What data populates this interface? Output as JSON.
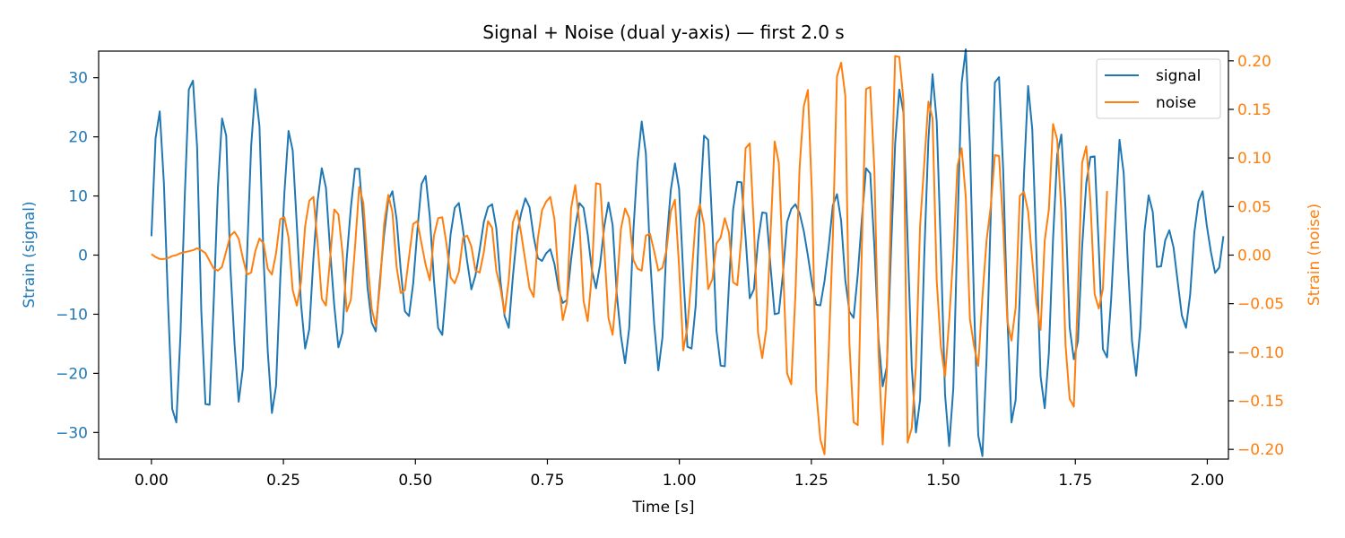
{
  "chart_data": {
    "type": "line",
    "title": "Signal + Noise (dual y-axis) — first 2.0 s",
    "xlabel": "Time [s]",
    "ylabel_left": "Strain (signal)",
    "ylabel_right": "Strain (noise)",
    "xlim": [
      -0.1,
      2.04
    ],
    "ylim_left": [
      -34.5,
      34.5
    ],
    "ylim_right": [
      -0.21,
      0.21
    ],
    "x_ticks": [
      0.0,
      0.25,
      0.5,
      0.75,
      1.0,
      1.25,
      1.5,
      1.75,
      2.0
    ],
    "x_tick_labels": [
      "0.00",
      "0.25",
      "0.50",
      "0.75",
      "1.00",
      "1.25",
      "1.50",
      "1.75",
      "2.00"
    ],
    "y_left_ticks": [
      30,
      20,
      10,
      0,
      -10,
      -20,
      -30
    ],
    "y_left_tick_labels": [
      "30",
      "20",
      "10",
      "0",
      "−10",
      "−20",
      "−30"
    ],
    "y_right_ticks": [
      0.2,
      0.15,
      0.1,
      0.05,
      0.0,
      -0.05,
      -0.1,
      -0.15,
      -0.2
    ],
    "y_right_tick_labels": [
      "0.20",
      "0.15",
      "0.10",
      "0.05",
      "0.00",
      "−0.05",
      "−0.10",
      "−0.15",
      "−0.20"
    ],
    "legend": {
      "placement": "top-right",
      "entries": [
        "signal",
        "noise"
      ]
    },
    "colors": {
      "signal": "#1f77b4",
      "noise": "#ff7f0e",
      "axis": "#000000"
    },
    "x_step": 0.00787,
    "series": [
      {
        "name": "signal",
        "axis": "left",
        "values": [
          3.2,
          19.8,
          24.3,
          12.2,
          -8,
          -26,
          -28.3,
          -13.3,
          9.5,
          28,
          29.5,
          18.2,
          -9.4,
          -25.2,
          -25.3,
          -7.7,
          11.3,
          23.1,
          20.2,
          -2,
          -15,
          -24.8,
          -19.2,
          -0.3,
          18.4,
          28.1,
          21.8,
          -0.7,
          -16.3,
          -26.7,
          -22.1,
          -4.2,
          10.5,
          21,
          17.7,
          5,
          -8.2,
          -15.8,
          -12.5,
          -0.5,
          9.2,
          14.7,
          11.4,
          0.9,
          -8.5,
          -15.6,
          -13.1,
          -0.6,
          8,
          14.6,
          14.6,
          5.6,
          -5.4,
          -11.4,
          -12.9,
          -4.1,
          3.5,
          9.3,
          10.8,
          6.1,
          -2.5,
          -9.5,
          -10.3,
          -4.8,
          4.1,
          12,
          13.4,
          6.5,
          -4.3,
          -12.3,
          -13.5,
          -5.1,
          3.5,
          8,
          8.8,
          4.2,
          -1.1,
          -5.8,
          -3.4,
          0.9,
          5.6,
          8.1,
          8.6,
          4.6,
          -4.4,
          -10.3,
          -12.3,
          -3.6,
          3.6,
          7.1,
          9.6,
          8.1,
          3.1,
          -0.5,
          -1,
          0.3,
          1,
          -1.5,
          -5.8,
          -8.1,
          -7.6,
          -0.8,
          4.7,
          8.8,
          8,
          3.5,
          -2.5,
          -5.6,
          -1.5,
          4.9,
          8.9,
          5.1,
          -6.6,
          -13.7,
          -18.3,
          -12.3,
          4.1,
          15.7,
          22.6,
          17.2,
          -0.2,
          -11.6,
          -19.5,
          -13.9,
          2.3,
          11,
          15.5,
          11.2,
          -3.2,
          -15.5,
          -15.8,
          -8.5,
          8,
          20.2,
          19.5,
          4.7,
          -12.8,
          -18.7,
          -18.8,
          -5,
          7.7,
          12.4,
          12.3,
          3,
          -7.3,
          -5.8,
          2.4,
          7.2,
          7.1,
          -1.9,
          -10,
          -9.8,
          -3.1,
          5.6,
          7.8,
          8.6,
          7.1,
          4.1,
          -0.1,
          -4.8,
          -8.4,
          -8.5,
          -4.4,
          1.4,
          8.4,
          10.3,
          5.8,
          -4.2,
          -9.6,
          -10.6,
          -3.3,
          6.2,
          14.7,
          13.8,
          1.4,
          -14.2,
          -22.2,
          -18.9,
          0.6,
          18.9,
          28,
          24.1,
          2.4,
          -18.9,
          -30,
          -24.5,
          -0.1,
          19.5,
          30.6,
          22.6,
          1.1,
          -23.5,
          -32.3,
          -22.5,
          4.6,
          29.1,
          34.8,
          18.7,
          -8.6,
          -30.5,
          -34,
          -17.5,
          6.5,
          29.2,
          30.1,
          14.4,
          -10.2,
          -28.3,
          -24.5,
          -6.8,
          13.5,
          28.6,
          21.3,
          0.4,
          -20.5,
          -25.9,
          -16.5,
          2.7,
          17,
          20.4,
          7.9,
          -12.2,
          -17.6,
          -14.5,
          1.4,
          12.2,
          16.6,
          16.7,
          1.4,
          -15.9,
          -17.3,
          -7.3,
          6.4,
          19.5,
          13.9,
          -1.3,
          -14.5,
          -20.4,
          -12.3,
          3.9,
          10.1,
          7.3,
          -2,
          -1.9,
          2.5,
          4.2,
          1.3,
          -4.5,
          -10.2,
          -12.3,
          -6.7,
          3.8,
          9.1,
          10.8,
          5,
          0.5,
          -3,
          -2.1,
          3.2
        ]
      },
      {
        "name": "noise",
        "axis": "right",
        "values": [
          0.001,
          -0.002,
          -0.004,
          -0.004,
          -0.003,
          -0.001,
          0,
          0.002,
          0.003,
          0.004,
          0.005,
          0.007,
          0.005,
          0.002,
          -0.006,
          -0.014,
          -0.016,
          -0.012,
          0.004,
          0.02,
          0.024,
          0.017,
          -0.003,
          -0.02,
          -0.018,
          0.004,
          0.017,
          0.012,
          -0.014,
          -0.02,
          0.002,
          0.037,
          0.039,
          0.018,
          -0.036,
          -0.052,
          -0.028,
          0.03,
          0.056,
          0.06,
          0.012,
          -0.045,
          -0.052,
          -0.004,
          0.047,
          0.042,
          0.002,
          -0.058,
          -0.046,
          0.008,
          0.07,
          0.054,
          -0.006,
          -0.055,
          -0.073,
          -0.032,
          0.032,
          0.062,
          0.044,
          -0.012,
          -0.039,
          -0.036,
          -0.002,
          0.032,
          0.035,
          0.012,
          -0.01,
          -0.026,
          0.02,
          0.038,
          0.039,
          0.012,
          -0.023,
          -0.029,
          -0.017,
          0.018,
          0.02,
          0.009,
          -0.016,
          -0.018,
          0.003,
          0.035,
          0.028,
          -0.016,
          -0.034,
          -0.06,
          -0.026,
          0.034,
          0.046,
          0.022,
          -0.006,
          -0.034,
          -0.043,
          0.017,
          0.046,
          0.055,
          0.06,
          0.037,
          -0.025,
          -0.067,
          -0.049,
          0.048,
          0.072,
          0.034,
          -0.047,
          -0.068,
          -0.02,
          0.074,
          0.073,
          0.006,
          -0.065,
          -0.082,
          -0.034,
          0.027,
          0.048,
          0.038,
          -0.005,
          -0.014,
          -0.016,
          0.02,
          0.022,
          0.004,
          -0.016,
          -0.013,
          0.006,
          0.045,
          0.057,
          -0.012,
          -0.098,
          -0.074,
          -0.022,
          0.037,
          0.052,
          0.031,
          -0.035,
          -0.025,
          0.012,
          0.018,
          0.038,
          0.023,
          -0.028,
          -0.031,
          0.019,
          0.11,
          0.115,
          0.03,
          -0.08,
          -0.106,
          -0.076,
          0.021,
          0.117,
          0.095,
          -0.01,
          -0.122,
          -0.133,
          -0.04,
          0.09,
          0.153,
          0.17,
          0.059,
          -0.14,
          -0.19,
          -0.205,
          -0.1,
          0.018,
          0.184,
          0.198,
          0.164,
          -0.092,
          -0.172,
          -0.175,
          0.011,
          0.171,
          0.173,
          0.088,
          -0.1,
          -0.195,
          -0.119,
          0.051,
          0.205,
          0.204,
          0.159,
          -0.193,
          -0.178,
          -0.114,
          0.03,
          0.094,
          0.158,
          0.141,
          -0.026,
          -0.094,
          -0.125,
          -0.067,
          0.001,
          0.092,
          0.11,
          0.06,
          -0.066,
          -0.094,
          -0.114,
          -0.043,
          0.015,
          0.05,
          0.103,
          0.102,
          0.03,
          -0.068,
          -0.088,
          -0.054,
          0.061,
          0.065,
          0.045,
          -0.005,
          -0.05,
          -0.077,
          0.015,
          0.047,
          0.135,
          0.119,
          0.045,
          -0.092,
          -0.148,
          -0.156,
          -0.038,
          0.095,
          0.112,
          0.055,
          -0.04,
          -0.055,
          -0.035,
          0.066
        ]
      }
    ]
  }
}
